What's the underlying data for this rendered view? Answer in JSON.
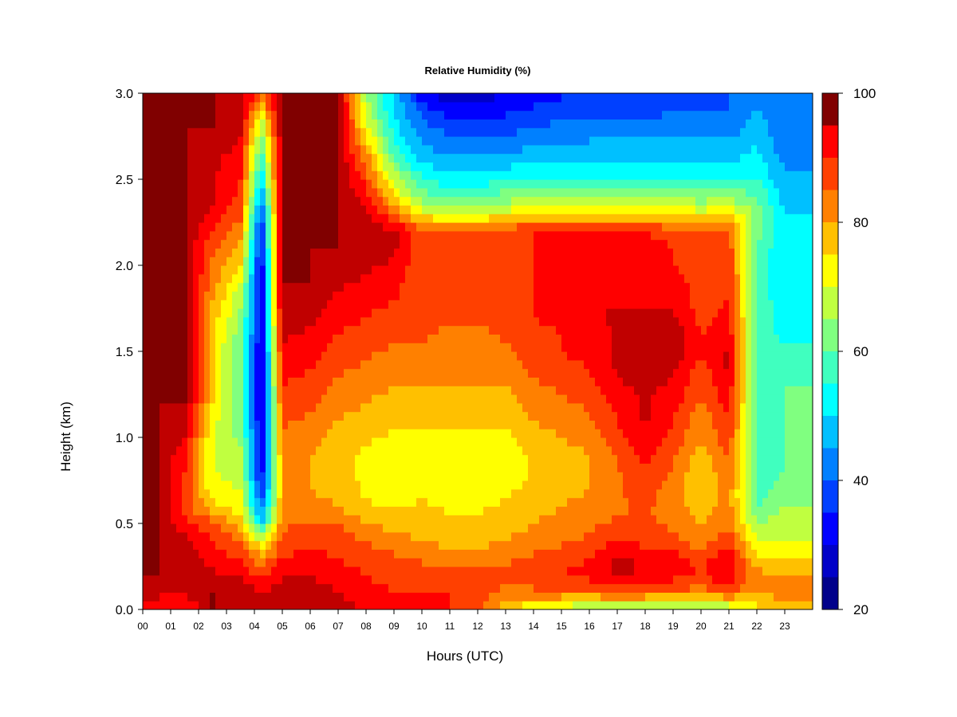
{
  "chart_data": {
    "type": "heatmap",
    "title": "Relative Humidity (%)",
    "xlabel": "Hours (UTC)",
    "ylabel": "Height (km)",
    "xlim": [
      0,
      24
    ],
    "ylim": [
      0.0,
      3.0
    ],
    "x_ticks": [
      "00",
      "01",
      "02",
      "03",
      "04",
      "05",
      "06",
      "07",
      "08",
      "09",
      "10",
      "11",
      "12",
      "13",
      "14",
      "15",
      "16",
      "17",
      "18",
      "19",
      "20",
      "21",
      "22",
      "23"
    ],
    "y_ticks": [
      "0.0",
      "0.5",
      "1.0",
      "1.5",
      "2.0",
      "2.5",
      "3.0"
    ],
    "colorbar": {
      "label_values": [
        "20",
        "40",
        "60",
        "80",
        "100"
      ],
      "range": [
        20,
        100
      ],
      "levels": [
        20,
        25,
        30,
        35,
        40,
        45,
        50,
        55,
        60,
        65,
        70,
        75,
        80,
        85,
        90,
        95,
        100
      ],
      "colors": [
        "#00008b",
        "#0000c8",
        "#0000ff",
        "#0040ff",
        "#0080ff",
        "#00c0ff",
        "#00ffff",
        "#40ffbf",
        "#80ff80",
        "#c0ff40",
        "#ffff00",
        "#ffc000",
        "#ff8000",
        "#ff4000",
        "#ff0000",
        "#c00000",
        "#800000"
      ]
    },
    "heights_km": [
      0.0,
      0.1,
      0.2,
      0.3,
      0.4,
      0.5,
      0.6,
      0.7,
      0.8,
      0.9,
      1.0,
      1.1,
      1.2,
      1.3,
      1.4,
      1.5,
      1.6,
      1.7,
      1.8,
      1.9,
      2.0,
      2.1,
      2.2,
      2.3,
      2.4,
      2.5,
      2.6,
      2.7,
      2.8,
      2.9,
      3.0
    ],
    "hours_utc": [
      0.5,
      1.5,
      2.5,
      3.5,
      4.25,
      5.0,
      6.0,
      7.0,
      8.0,
      9.0,
      10.0,
      11.0,
      12.0,
      13.0,
      14.0,
      15.0,
      16.0,
      17.0,
      18.0,
      19.0,
      20.0,
      21.0,
      22.0,
      23.0
    ],
    "rh_profiles_percent": [
      [
        92,
        96,
        100,
        100,
        100,
        100,
        100,
        100,
        100,
        100,
        100,
        100,
        100,
        100,
        100,
        100,
        100,
        100,
        100,
        100,
        100,
        100,
        100,
        100,
        100,
        100,
        100,
        100,
        100,
        100,
        100
      ],
      [
        90,
        95,
        98,
        98,
        96,
        92,
        88,
        88,
        90,
        92,
        95,
        98,
        100,
        100,
        100,
        100,
        100,
        100,
        100,
        100,
        100,
        100,
        100,
        100,
        100,
        100,
        100,
        100,
        100,
        100,
        100
      ],
      [
        100,
        100,
        96,
        92,
        90,
        86,
        76,
        72,
        70,
        70,
        70,
        72,
        75,
        75,
        76,
        76,
        76,
        78,
        80,
        82,
        84,
        86,
        90,
        94,
        96,
        96,
        96,
        98,
        100,
        100,
        100
      ],
      [
        100,
        98,
        94,
        90,
        85,
        78,
        72,
        70,
        68,
        66,
        64,
        62,
        60,
        60,
        60,
        60,
        62,
        64,
        66,
        70,
        75,
        78,
        82,
        86,
        88,
        90,
        92,
        94,
        96,
        98,
        100
      ],
      [
        100,
        95,
        88,
        80,
        72,
        50,
        40,
        35,
        32,
        30,
        30,
        28,
        28,
        28,
        28,
        28,
        30,
        30,
        30,
        30,
        30,
        32,
        34,
        38,
        45,
        50,
        55,
        60,
        65,
        75,
        85
      ],
      [
        100,
        98,
        95,
        90,
        86,
        84,
        82,
        80,
        80,
        82,
        84,
        86,
        88,
        90,
        92,
        94,
        96,
        98,
        100,
        100,
        100,
        100,
        100,
        100,
        100,
        100,
        100,
        100,
        100,
        100,
        100
      ],
      [
        100,
        98,
        95,
        92,
        88,
        86,
        82,
        80,
        80,
        80,
        82,
        84,
        86,
        88,
        90,
        92,
        94,
        96,
        98,
        100,
        100,
        100,
        100,
        100,
        100,
        100,
        100,
        100,
        100,
        100,
        100
      ],
      [
        98,
        95,
        92,
        90,
        88,
        85,
        80,
        78,
        76,
        76,
        78,
        80,
        82,
        84,
        86,
        88,
        90,
        92,
        94,
        96,
        98,
        100,
        100,
        100,
        100,
        100,
        100,
        100,
        100,
        100,
        100
      ],
      [
        94,
        92,
        90,
        88,
        85,
        80,
        76,
        74,
        74,
        74,
        76,
        78,
        80,
        82,
        84,
        86,
        88,
        90,
        92,
        94,
        96,
        98,
        98,
        96,
        92,
        88,
        84,
        78,
        72,
        68,
        65
      ],
      [
        92,
        90,
        88,
        86,
        82,
        78,
        74,
        72,
        72,
        72,
        74,
        76,
        78,
        80,
        82,
        84,
        86,
        88,
        90,
        92,
        94,
        96,
        96,
        86,
        76,
        68,
        62,
        56,
        52,
        50,
        48
      ],
      [
        90,
        90,
        88,
        84,
        80,
        78,
        76,
        74,
        72,
        72,
        74,
        76,
        78,
        80,
        82,
        84,
        86,
        86,
        86,
        86,
        86,
        86,
        86,
        72,
        62,
        55,
        50,
        45,
        42,
        38,
        32
      ],
      [
        90,
        90,
        86,
        82,
        78,
        76,
        74,
        72,
        72,
        72,
        74,
        76,
        78,
        80,
        82,
        82,
        84,
        86,
        86,
        86,
        86,
        86,
        86,
        70,
        60,
        52,
        46,
        42,
        38,
        32,
        26
      ],
      [
        86,
        88,
        86,
        82,
        78,
        76,
        74,
        72,
        72,
        72,
        74,
        76,
        78,
        80,
        82,
        82,
        84,
        86,
        86,
        86,
        86,
        86,
        86,
        70,
        60,
        52,
        46,
        42,
        38,
        32,
        28
      ],
      [
        75,
        84,
        86,
        84,
        80,
        78,
        76,
        74,
        72,
        72,
        74,
        76,
        78,
        80,
        82,
        84,
        86,
        86,
        88,
        88,
        88,
        88,
        88,
        72,
        62,
        55,
        48,
        42,
        38,
        34,
        30
      ],
      [
        70,
        84,
        88,
        86,
        82,
        80,
        78,
        76,
        76,
        76,
        78,
        80,
        82,
        84,
        86,
        88,
        88,
        90,
        90,
        90,
        90,
        90,
        90,
        74,
        64,
        56,
        50,
        45,
        40,
        36,
        32
      ],
      [
        68,
        84,
        90,
        88,
        84,
        82,
        80,
        78,
        78,
        78,
        80,
        82,
        84,
        86,
        88,
        90,
        90,
        92,
        92,
        92,
        92,
        92,
        92,
        74,
        64,
        56,
        50,
        45,
        42,
        38,
        34
      ],
      [
        62,
        84,
        92,
        90,
        86,
        84,
        82,
        80,
        80,
        80,
        82,
        84,
        86,
        88,
        90,
        92,
        92,
        94,
        94,
        94,
        94,
        94,
        92,
        74,
        64,
        56,
        50,
        46,
        42,
        38,
        35
      ],
      [
        64,
        88,
        96,
        96,
        90,
        86,
        84,
        84,
        84,
        86,
        88,
        90,
        92,
        94,
        96,
        96,
        96,
        96,
        94,
        92,
        92,
        92,
        90,
        74,
        64,
        56,
        50,
        46,
        42,
        38,
        36
      ],
      [
        62,
        86,
        94,
        94,
        88,
        86,
        86,
        88,
        90,
        92,
        94,
        96,
        96,
        96,
        98,
        98,
        96,
        96,
        94,
        92,
        92,
        92,
        90,
        74,
        64,
        56,
        50,
        46,
        42,
        38,
        38
      ],
      [
        62,
        84,
        92,
        92,
        86,
        84,
        82,
        82,
        84,
        86,
        88,
        90,
        92,
        94,
        96,
        98,
        98,
        96,
        94,
        92,
        90,
        90,
        88,
        74,
        64,
        56,
        50,
        46,
        42,
        40,
        38
      ],
      [
        60,
        82,
        90,
        88,
        82,
        80,
        78,
        76,
        76,
        78,
        80,
        82,
        84,
        86,
        88,
        90,
        90,
        88,
        88,
        88,
        88,
        88,
        86,
        72,
        62,
        56,
        50,
        46,
        42,
        40,
        38
      ],
      [
        64,
        86,
        94,
        94,
        88,
        84,
        82,
        82,
        84,
        86,
        88,
        90,
        92,
        94,
        96,
        96,
        94,
        92,
        90,
        90,
        88,
        88,
        86,
        74,
        64,
        56,
        50,
        46,
        42,
        40,
        40
      ],
      [
        74,
        80,
        82,
        76,
        70,
        65,
        60,
        58,
        58,
        58,
        58,
        58,
        58,
        58,
        58,
        58,
        58,
        58,
        58,
        58,
        58,
        60,
        62,
        64,
        60,
        55,
        52,
        50,
        48,
        46,
        44
      ],
      [
        78,
        82,
        80,
        75,
        70,
        68,
        65,
        62,
        60,
        60,
        60,
        60,
        60,
        60,
        58,
        56,
        54,
        52,
        52,
        50,
        50,
        50,
        50,
        50,
        48,
        46,
        44,
        42,
        40,
        40,
        40
      ]
    ]
  }
}
